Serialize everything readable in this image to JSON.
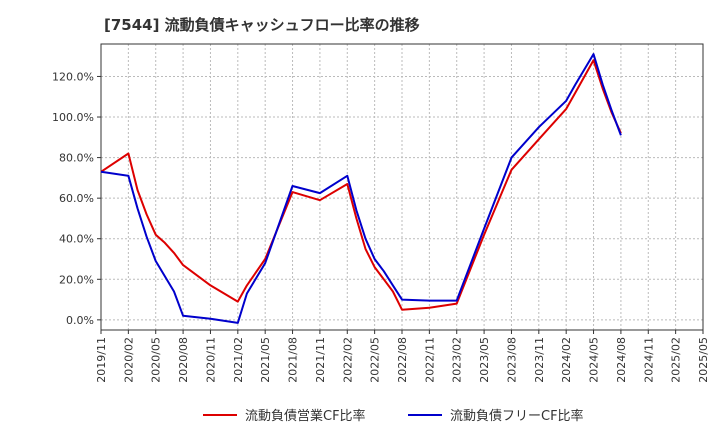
{
  "chart_data": {
    "type": "line",
    "title": "[7544]  流動負債キャッシュフロー比率の推移",
    "xlabel": "",
    "ylabel": "",
    "ylim": [
      -5,
      136
    ],
    "y_ticks": [
      0,
      20,
      40,
      60,
      80,
      100,
      120
    ],
    "y_tick_labels": [
      "0.0%",
      "20.0%",
      "40.0%",
      "60.0%",
      "80.0%",
      "100.0%",
      "120.0%"
    ],
    "x_tick_labels": [
      "2019/11",
      "2020/02",
      "2020/05",
      "2020/08",
      "2020/11",
      "2021/02",
      "2021/05",
      "2021/08",
      "2021/11",
      "2022/02",
      "2022/05",
      "2022/08",
      "2022/11",
      "2023/02",
      "2023/05",
      "2023/08",
      "2023/11",
      "2024/02",
      "2024/05",
      "2024/08",
      "2024/11",
      "2025/02",
      "2025/05"
    ],
    "grid": true,
    "legend_position": "bottom",
    "series": [
      {
        "name": "流動負債営業CF比率",
        "color": "#dd0000",
        "points": [
          [
            "2019/11",
            73
          ],
          [
            "2020/02",
            82
          ],
          [
            "2020/03",
            64
          ],
          [
            "2020/04",
            52
          ],
          [
            "2020/05",
            42
          ],
          [
            "2020/06",
            38
          ],
          [
            "2020/07",
            33
          ],
          [
            "2020/08",
            27
          ],
          [
            "2020/11",
            17
          ],
          [
            "2021/02",
            9
          ],
          [
            "2021/03",
            17
          ],
          [
            "2021/05",
            30
          ],
          [
            "2021/08",
            63
          ],
          [
            "2021/11",
            59
          ],
          [
            "2022/02",
            67
          ],
          [
            "2022/03",
            50
          ],
          [
            "2022/04",
            35
          ],
          [
            "2022/05",
            26
          ],
          [
            "2022/06",
            20
          ],
          [
            "2022/07",
            14
          ],
          [
            "2022/08",
            5
          ],
          [
            "2022/11",
            6
          ],
          [
            "2023/02",
            8
          ],
          [
            "2023/05",
            42
          ],
          [
            "2023/08",
            74
          ],
          [
            "2023/11",
            89
          ],
          [
            "2024/02",
            104
          ],
          [
            "2024/03",
            112
          ],
          [
            "2024/05",
            128
          ],
          [
            "2024/06",
            114
          ],
          [
            "2024/07",
            102
          ],
          [
            "2024/08",
            92
          ]
        ]
      },
      {
        "name": "流動負債フリーCF比率",
        "color": "#0000cc",
        "points": [
          [
            "2019/11",
            73
          ],
          [
            "2020/02",
            71
          ],
          [
            "2020/03",
            55
          ],
          [
            "2020/04",
            41
          ],
          [
            "2020/05",
            29
          ],
          [
            "2020/07",
            14
          ],
          [
            "2020/08",
            2
          ],
          [
            "2020/11",
            0.5
          ],
          [
            "2021/02",
            -1.5
          ],
          [
            "2021/03",
            13
          ],
          [
            "2021/05",
            28
          ],
          [
            "2021/08",
            66
          ],
          [
            "2021/11",
            62.5
          ],
          [
            "2022/02",
            71
          ],
          [
            "2022/03",
            54
          ],
          [
            "2022/04",
            40
          ],
          [
            "2022/05",
            30
          ],
          [
            "2022/06",
            24
          ],
          [
            "2022/07",
            17
          ],
          [
            "2022/08",
            10
          ],
          [
            "2022/11",
            9.5
          ],
          [
            "2023/02",
            9.5
          ],
          [
            "2023/05",
            45
          ],
          [
            "2023/08",
            80
          ],
          [
            "2023/11",
            95
          ],
          [
            "2024/02",
            108
          ],
          [
            "2024/03",
            116
          ],
          [
            "2024/05",
            131
          ],
          [
            "2024/06",
            116
          ],
          [
            "2024/07",
            103
          ],
          [
            "2024/08",
            91
          ]
        ]
      }
    ]
  }
}
